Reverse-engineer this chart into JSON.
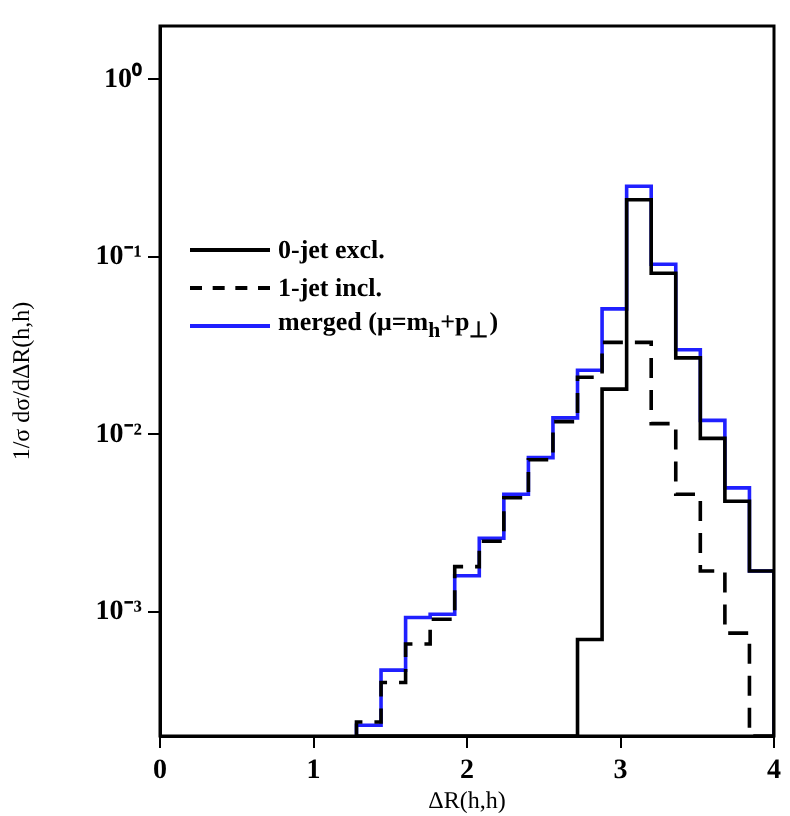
{
  "chart_data": {
    "type": "histogram",
    "xlabel": "ΔR(h,h)",
    "ylabel": "1/σ dσ/dΔR(h,h)",
    "bins": [
      1.28,
      1.44,
      1.6,
      1.76,
      1.92,
      2.08,
      2.24,
      2.4,
      2.56,
      2.72,
      2.88,
      3.04,
      3.2,
      3.36,
      3.52,
      3.68,
      3.84,
      4.0
    ],
    "series": [
      {
        "name": "0-jet excl.",
        "color": "#000000",
        "line_style": "solid",
        "values": [
          null,
          null,
          null,
          null,
          null,
          null,
          null,
          null,
          null,
          0.0007,
          0.018,
          0.21,
          0.081,
          0.027,
          0.0095,
          0.0042,
          0.0017
        ]
      },
      {
        "name": "1-jet incl.",
        "color": "#000000",
        "line_style": "dashed",
        "values": [
          0.00024,
          0.0004,
          0.00066,
          0.00091,
          0.0018,
          0.0025,
          0.0044,
          0.0072,
          0.0118,
          0.021,
          0.033,
          0.033,
          0.0115,
          0.0046,
          0.0017,
          0.00076,
          null
        ]
      },
      {
        "name": "merged (μ=m$_{h}$+p$_{⊥}$)",
        "color": "#2020ff",
        "line_style": "solid",
        "values": [
          0.00023,
          0.00047,
          0.00093,
          0.00097,
          0.0016,
          0.0026,
          0.0046,
          0.0074,
          0.0124,
          0.023,
          0.051,
          0.25,
          0.091,
          0.03,
          0.012,
          0.005,
          0.0017
        ]
      }
    ],
    "xlim": [
      0,
      4
    ],
    "xticks": [
      0,
      1,
      2,
      3,
      4
    ],
    "ylim": [
      0.0002,
      2
    ],
    "log": "y",
    "yticks": [
      {
        "value": 0.001,
        "label": "10⁻³"
      },
      {
        "value": 0.01,
        "label": "10⁻²"
      },
      {
        "value": 0.1,
        "label": "10⁻¹"
      },
      {
        "value": 1,
        "label": "10⁰"
      }
    ],
    "grid": false,
    "legend": "top left"
  }
}
